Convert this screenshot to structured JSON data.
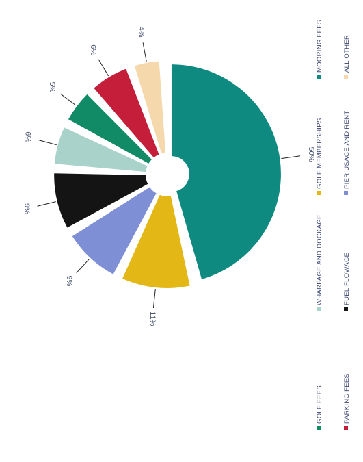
{
  "chart_data": {
    "type": "pie",
    "title": "",
    "slices": [
      {
        "label": "MOORING FEES",
        "value": 50,
        "display": "50%",
        "color": "#0f8a80"
      },
      {
        "label": "GOLF MEMBERSHIPS",
        "value": 11,
        "display": "11%",
        "color": "#e3b716"
      },
      {
        "label": "PIER USAGE AND RENT",
        "value": 9,
        "display": "9%",
        "color": "#7e8fd6"
      },
      {
        "label": "FUEL FLOWAGE",
        "value": 9,
        "display": "9%",
        "color": "#141414"
      },
      {
        "label": "WHARFAGE AND DOCKAGE",
        "value": 6,
        "display": "6%",
        "color": "#a8d2ca"
      },
      {
        "label": "GOLF FEES",
        "value": 5,
        "display": "5%",
        "color": "#118a66"
      },
      {
        "label": "PARKING FEES",
        "value": 6,
        "display": "6%",
        "color": "#c41e3a"
      },
      {
        "label": "ALL OTHER",
        "value": 4,
        "display": "4%",
        "color": "#f5d9ad"
      }
    ],
    "legend": {
      "placement": "bottom",
      "items": [
        {
          "label": "GOLF FEES",
          "color": "#118a66"
        },
        {
          "label": "WHARFAGE AND DOCKAGE",
          "color": "#a8d2ca"
        },
        {
          "label": "GOLF MEMBERSHIPS",
          "color": "#e3b716"
        },
        {
          "label": "MOORING FEES",
          "color": "#0f8a80"
        },
        {
          "label": "PARKING FEES",
          "color": "#c41e3a"
        },
        {
          "label": "FUEL FLOWAGE",
          "color": "#141414"
        },
        {
          "label": "PIER USAGE AND RENT",
          "color": "#7e8fd6"
        },
        {
          "label": "ALL OTHER",
          "color": "#f5d9ad"
        }
      ]
    }
  }
}
